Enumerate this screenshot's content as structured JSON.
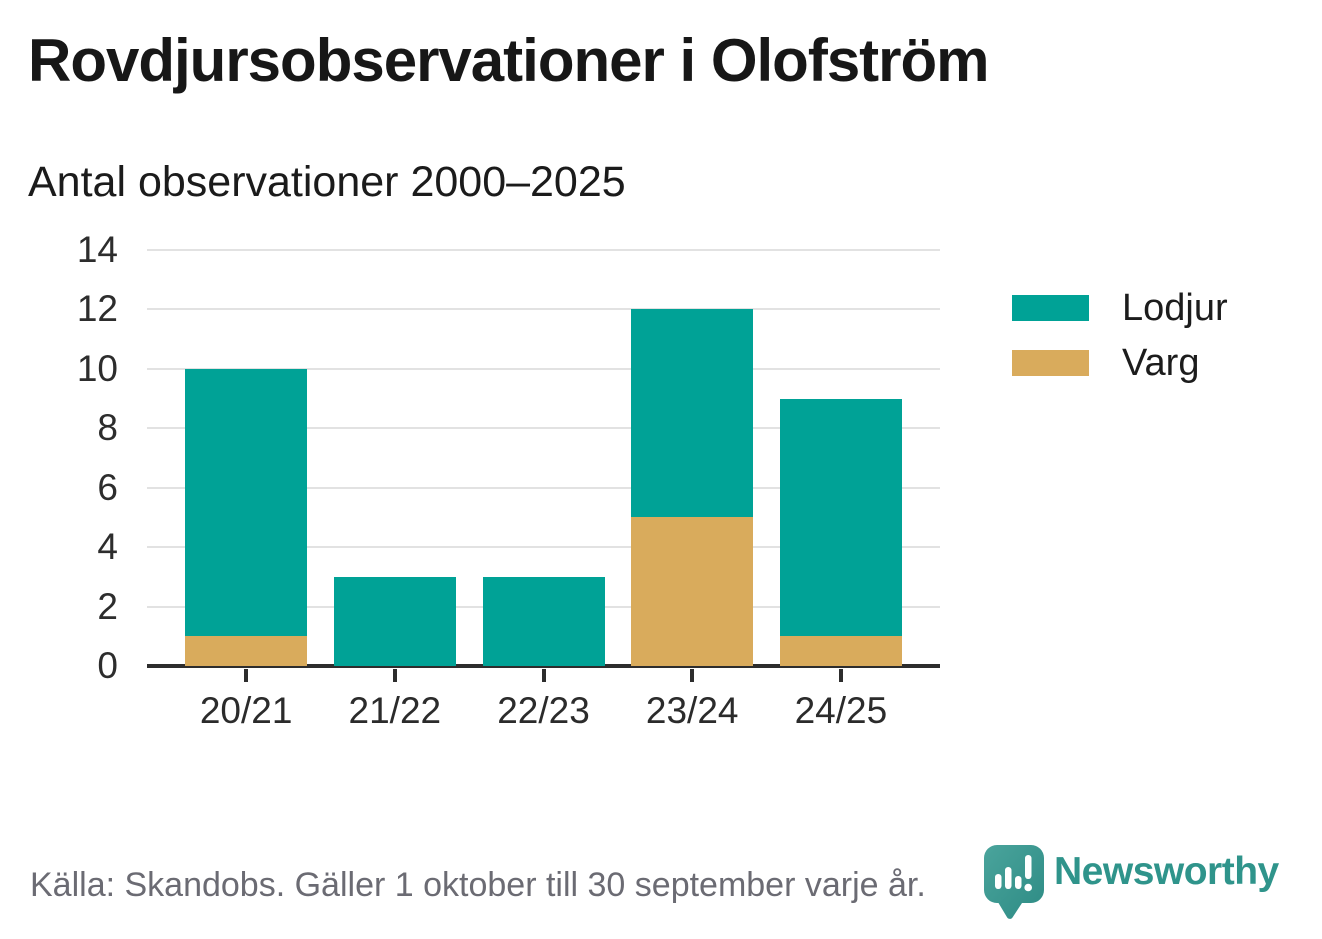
{
  "header": {
    "title": "Rovdjursobservationer i Olofström"
  },
  "chart": {
    "subtitle": "Antal observationer 2000–2025"
  },
  "chart_data": {
    "type": "bar",
    "stacked": true,
    "title": "Rovdjursobservationer i Olofström",
    "subtitle": "Antal observationer 2000–2025",
    "categories": [
      "20/21",
      "21/22",
      "22/23",
      "23/24",
      "24/25"
    ],
    "series": [
      {
        "name": "Lodjur",
        "color": "#00a296",
        "values": [
          9,
          3,
          3,
          7,
          8
        ]
      },
      {
        "name": "Varg",
        "color": "#d9ab5c",
        "values": [
          1,
          0,
          0,
          5,
          1
        ]
      }
    ],
    "stack_order": [
      "Varg",
      "Lodjur"
    ],
    "totals": [
      10,
      3,
      3,
      12,
      9
    ],
    "xlabel": "",
    "ylabel": "",
    "ylim": [
      0,
      14
    ],
    "yticks": [
      0,
      2,
      4,
      6,
      8,
      10,
      12,
      14
    ],
    "grid": "horizontal",
    "legend_position": "right"
  },
  "footer": {
    "source": "Källa: Skandobs. Gäller 1 oktober till 30 september varje år.",
    "logo_text": "Newsworthy"
  },
  "colors": {
    "lodjur_teal": "#00a296",
    "varg_tan": "#d9ab5c",
    "axis": "#2d2d2d",
    "gridline": "#e2e2e2",
    "footer_gray": "#6b6b73",
    "brand_teal": "#2f948b"
  }
}
